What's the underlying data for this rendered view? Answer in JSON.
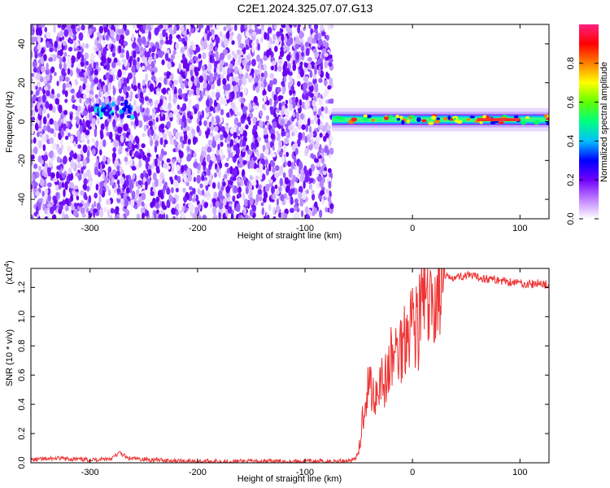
{
  "figure_title": "C2E1.2024.325.07.07.G13",
  "chart_data": [
    {
      "type": "heatmap",
      "title": "",
      "xlabel": "Height of straight line (km)",
      "ylabel": "Frequency (Hz)",
      "xlim": [
        -355,
        127
      ],
      "ylim": [
        -50,
        50
      ],
      "xticks": [
        -300,
        -200,
        -100,
        0,
        100
      ],
      "yticks": [
        -40,
        -20,
        0,
        20,
        40
      ],
      "noise_region_x": [
        -355,
        -75
      ],
      "carrier_region_x": [
        -75,
        127
      ],
      "carrier_frequency_hz": 1,
      "colorbar": {
        "label": "Normalized spectral amplitude",
        "range": [
          0.0,
          1.0
        ],
        "ticks": [
          0.0,
          0.2,
          0.4,
          0.6,
          0.8
        ],
        "colors": [
          "#ffffff",
          "#c080ff",
          "#7000ff",
          "#0000ff",
          "#00c0ff",
          "#00ff80",
          "#60ff00",
          "#ffff00",
          "#ff8000",
          "#ff0000",
          "#ff2080"
        ]
      }
    },
    {
      "type": "line",
      "title": "",
      "xlabel": "Height of straight line (km)",
      "ylabel": "SNR (10 * v/v)",
      "y_multiplier": "(x10",
      "y_multiplier_exp": "4",
      "y_multiplier_close": ")",
      "xlim": [
        -355,
        127
      ],
      "ylim": [
        0.0,
        1.33
      ],
      "xticks": [
        -300,
        -200,
        -100,
        0,
        100
      ],
      "yticks": [
        0.0,
        0.2,
        0.4,
        0.6,
        0.8,
        1.0,
        1.2
      ],
      "color": "#ee3333",
      "series": [
        {
          "x": [
            -355,
            -330,
            -300,
            -280,
            -272,
            -265,
            -240,
            -200,
            -150,
            -100,
            -70,
            -55,
            -50,
            -45,
            -40,
            -35,
            -30,
            -25,
            -20,
            -15,
            -10,
            -5,
            0,
            5,
            10,
            15,
            20,
            25,
            30,
            35,
            40,
            50,
            60,
            70,
            80,
            90,
            100,
            110,
            120,
            127
          ],
          "values": [
            0.02,
            0.03,
            0.02,
            0.03,
            0.07,
            0.03,
            0.02,
            0.01,
            0.01,
            0.01,
            0.01,
            0.02,
            0.06,
            0.4,
            0.55,
            0.45,
            0.6,
            0.55,
            0.7,
            0.75,
            0.8,
            0.95,
            1.0,
            0.92,
            1.15,
            1.0,
            1.1,
            1.2,
            1.26,
            1.28,
            1.27,
            1.28,
            1.27,
            1.26,
            1.25,
            1.24,
            1.23,
            1.22,
            1.23,
            1.21
          ]
        }
      ]
    }
  ]
}
